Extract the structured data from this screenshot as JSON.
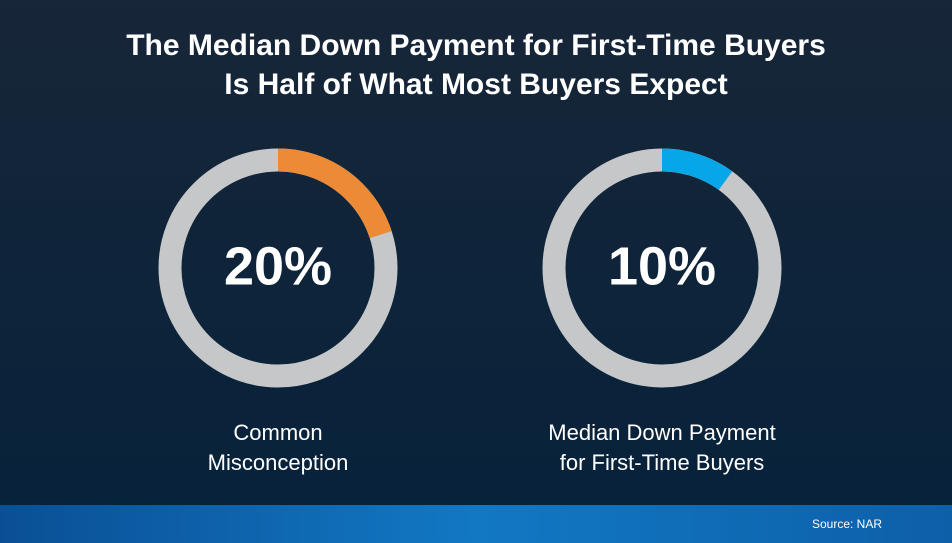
{
  "title": [
    "The Median Down Payment for First-Time Buyers",
    "Is Half of What Most Buyers Expect"
  ],
  "source": "Source: NAR",
  "chart_data": [
    {
      "type": "donut",
      "values": [
        20
      ],
      "value_labels": [
        "20%"
      ],
      "label": [
        "Common",
        "Misconception"
      ],
      "color": "#ec8a35",
      "track_color": "#c5c7c9",
      "ylim": [
        0,
        100
      ]
    },
    {
      "type": "donut",
      "values": [
        10
      ],
      "value_labels": [
        "10%"
      ],
      "label": [
        "Median Down Payment",
        "for First-Time Buyers"
      ],
      "color": "#06a7e9",
      "track_color": "#c5c7c9",
      "ylim": [
        0,
        100
      ]
    }
  ]
}
